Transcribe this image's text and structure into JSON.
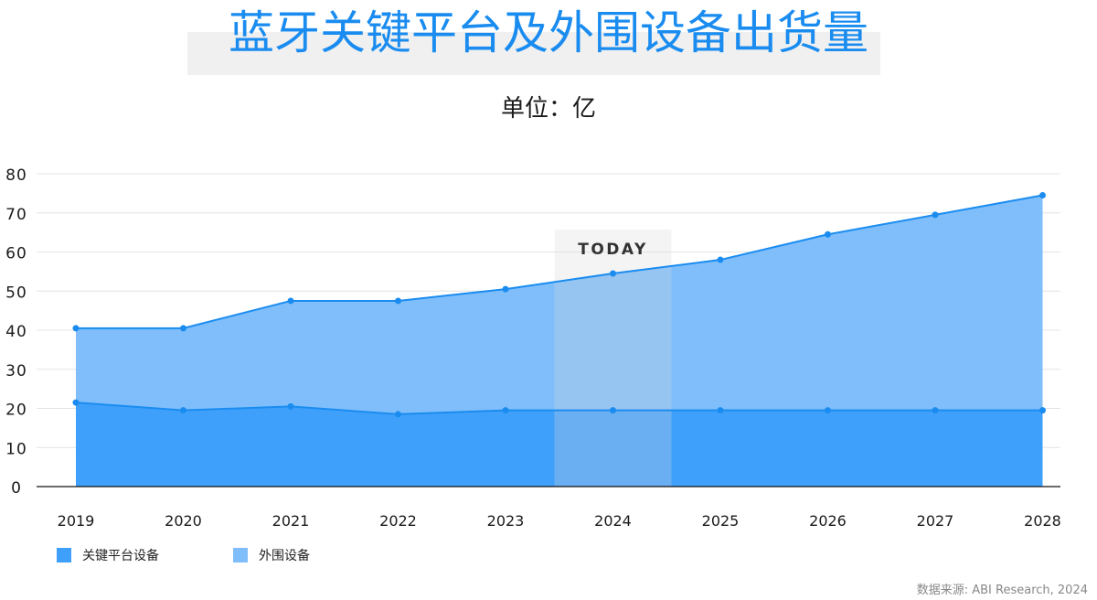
{
  "title": "蓝牙关键平台及外围设备出货量",
  "subtitle": "单位：亿",
  "source": "数据来源: ABI Research, 2024",
  "highlight_label": "TODAY",
  "colors": {
    "title": "#1a8cf0",
    "line": "#1a8cf0",
    "series_platform": "#3fa0fb",
    "series_peripheral": "#7fbefb",
    "highlight": "#ebebeb"
  },
  "chart_data": {
    "type": "area",
    "stacked": true,
    "x": [
      "2019",
      "2020",
      "2021",
      "2022",
      "2023",
      "2024",
      "2025",
      "2026",
      "2027",
      "2028"
    ],
    "series": [
      {
        "name": "关键平台设备",
        "values": [
          21.5,
          19.5,
          20.5,
          18.5,
          19.5,
          19.5,
          19.5,
          19.5,
          19.5,
          19.5
        ]
      },
      {
        "name": "外围设备",
        "values": [
          19,
          21,
          27,
          29,
          31,
          35,
          38.5,
          45,
          50,
          55
        ]
      }
    ],
    "totals": [
      40.5,
      40.5,
      47.5,
      47.5,
      50.5,
      54.5,
      58,
      64.5,
      69.5,
      74.5
    ],
    "ylim": [
      0,
      80
    ],
    "yticks": [
      "0",
      "10",
      "20",
      "30",
      "40",
      "50",
      "60",
      "70",
      "80"
    ],
    "grid": true,
    "highlight_category": "2024",
    "legend_position": "bottom-left"
  }
}
